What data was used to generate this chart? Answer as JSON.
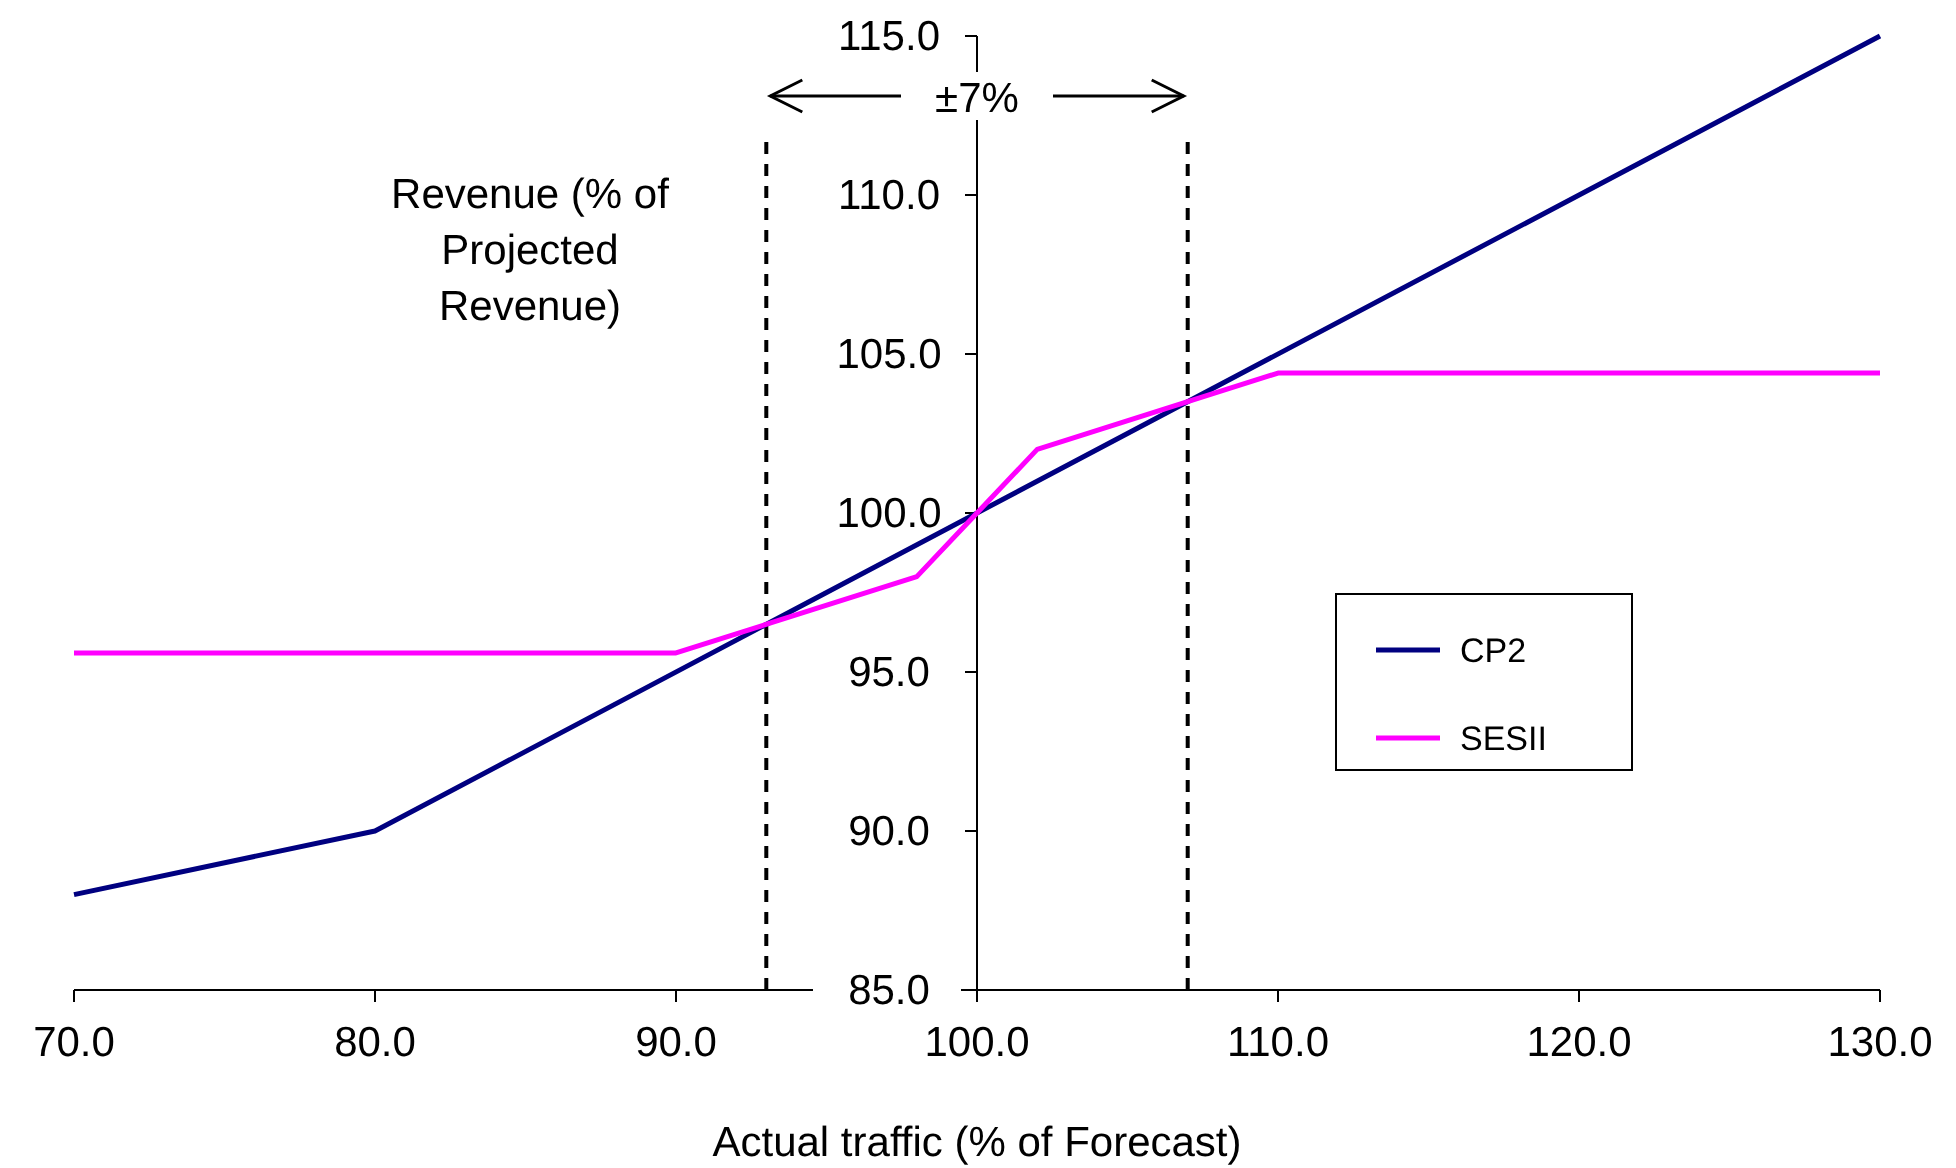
{
  "chart_data": {
    "type": "line",
    "xlabel": "Actual traffic (% of Forecast)",
    "ylabel": "Revenue (% of Projected Revenue)",
    "xlim": [
      70,
      130
    ],
    "xticks": [
      {
        "value": 70,
        "label": "70.0"
      },
      {
        "value": 80,
        "label": "80.0"
      },
      {
        "value": 90,
        "label": "90.0"
      },
      {
        "value": 100,
        "label": "100.0"
      },
      {
        "value": 110,
        "label": "110.0"
      },
      {
        "value": 120,
        "label": "120.0"
      },
      {
        "value": 130,
        "label": "130.0"
      }
    ],
    "ylim": [
      85,
      115
    ],
    "yticks": [
      {
        "value": 85,
        "label": "85.0"
      },
      {
        "value": 90,
        "label": "90.0"
      },
      {
        "value": 95,
        "label": "95.0"
      },
      {
        "value": 100,
        "label": "100.0"
      },
      {
        "value": 105,
        "label": "105.0"
      },
      {
        "value": 110,
        "label": "110.0"
      },
      {
        "value": 115,
        "label": "115.0"
      }
    ],
    "series": [
      {
        "name": "CP2",
        "color": "#000080",
        "x": [
          70,
          80,
          130
        ],
        "values": [
          88,
          90,
          115
        ]
      },
      {
        "name": "SESII",
        "color": "#ff00ff",
        "x": [
          70,
          90,
          98,
          100,
          102,
          110,
          130
        ],
        "values": [
          95.6,
          95.6,
          98,
          100,
          102,
          104.4,
          104.4
        ]
      }
    ],
    "ref_lines": [
      {
        "axis": "x",
        "value": 93,
        "line_style": "dashed",
        "color": "#000000"
      },
      {
        "axis": "x",
        "value": 107,
        "line_style": "dashed",
        "color": "#000000"
      }
    ],
    "annotations": [
      "±7%"
    ],
    "legend": "right"
  }
}
